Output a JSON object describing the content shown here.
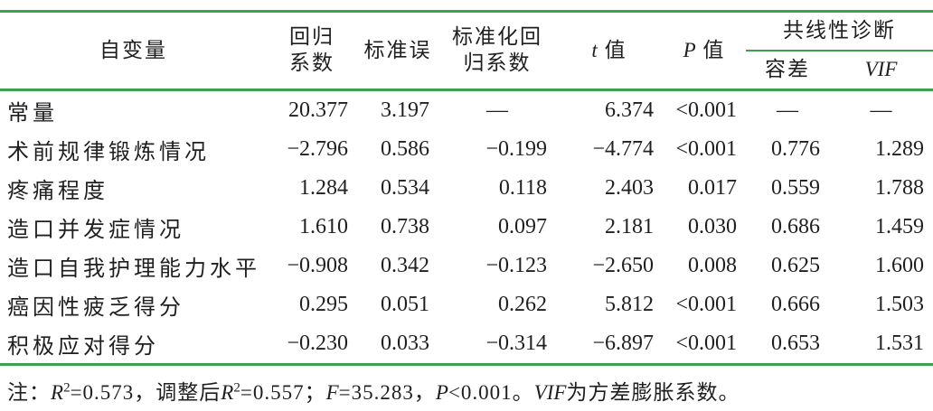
{
  "colors": {
    "rule_green": "#3aa24a",
    "text": "#1f1f1f"
  },
  "table": {
    "header": {
      "col_variable": "自变量",
      "col_coef_line1": "回归",
      "col_coef_line2": "系数",
      "col_se": "标准误",
      "col_std_line1": "标准化回",
      "col_std_line2": "归系数",
      "col_t_symbol": "t",
      "col_t_label": "值",
      "col_p_symbol": "P",
      "col_p_label": "值",
      "col_collinearity": "共线性诊断",
      "col_tolerance": "容差",
      "col_vif": "VIF"
    },
    "rows": [
      {
        "label": "常量",
        "coef": "20.377",
        "se": "3.197",
        "std": "—",
        "t": "6.374",
        "p": "<0.001",
        "tolerance": "—",
        "vif": "—"
      },
      {
        "label": "术前规律锻炼情况",
        "coef": "−2.796",
        "se": "0.586",
        "std": "−0.199",
        "t": "−4.774",
        "p": "<0.001",
        "tolerance": "0.776",
        "vif": "1.289"
      },
      {
        "label": "疼痛程度",
        "coef": "1.284",
        "se": "0.534",
        "std": "0.118",
        "t": "2.403",
        "p": "0.017",
        "tolerance": "0.559",
        "vif": "1.788"
      },
      {
        "label": "造口并发症情况",
        "coef": "1.610",
        "se": "0.738",
        "std": "0.097",
        "t": "2.181",
        "p": "0.030",
        "tolerance": "0.686",
        "vif": "1.459"
      },
      {
        "label": "造口自我护理能力水平",
        "coef": "−0.908",
        "se": "0.342",
        "std": "−0.123",
        "t": "−2.650",
        "p": "0.008",
        "tolerance": "0.625",
        "vif": "1.600"
      },
      {
        "label": "癌因性疲乏得分",
        "coef": "0.295",
        "se": "0.051",
        "std": "0.262",
        "t": "5.812",
        "p": "<0.001",
        "tolerance": "0.666",
        "vif": "1.503"
      },
      {
        "label": "积极应对得分",
        "coef": "−0.230",
        "se": "0.033",
        "std": "−0.314",
        "t": "−6.897",
        "p": "<0.001",
        "tolerance": "0.653",
        "vif": "1.531"
      }
    ]
  },
  "note": {
    "parts": [
      {
        "t": "注："
      },
      {
        "t": "R",
        "i": true
      },
      {
        "t": "2",
        "sup": true
      },
      {
        "t": "=0.573，调整后"
      },
      {
        "t": "R",
        "i": true
      },
      {
        "t": "2",
        "sup": true
      },
      {
        "t": "=0.557；"
      },
      {
        "t": "F",
        "i": true
      },
      {
        "t": "=35.283，"
      },
      {
        "t": "P",
        "i": true
      },
      {
        "t": "<0.001。"
      },
      {
        "t": "VIF",
        "i": true
      },
      {
        "t": "为方差膨胀系数。"
      }
    ]
  }
}
